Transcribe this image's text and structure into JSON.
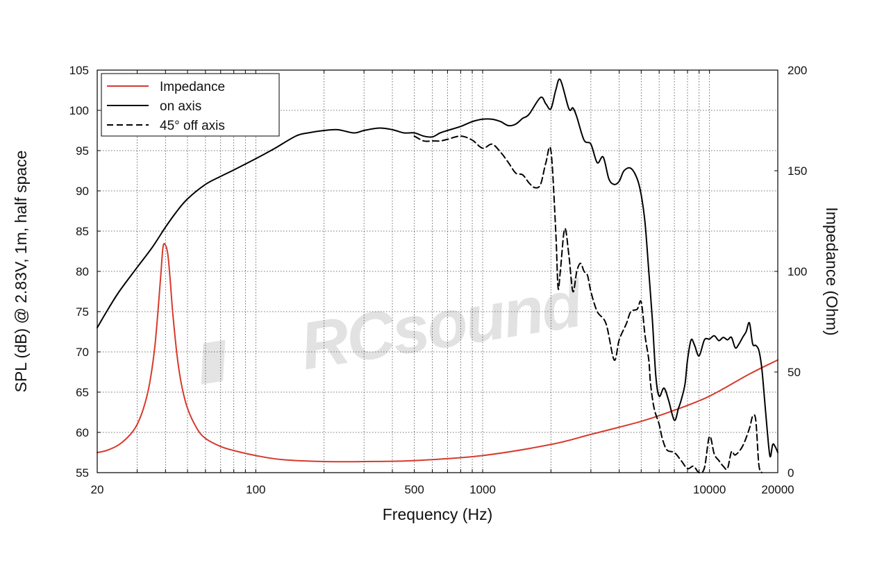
{
  "chart_data": {
    "type": "line",
    "title": "",
    "xlabel": "Frequency (Hz)",
    "ylabel": "SPL (dB) @ 2.83V, 1m, half space",
    "y2label": "Impedance (Ohm)",
    "x_scale": "log",
    "xlim": [
      20,
      20000
    ],
    "ylim": [
      55,
      105
    ],
    "y2lim": [
      0,
      200
    ],
    "x_ticks": [
      20,
      100,
      500,
      1000,
      10000,
      20000
    ],
    "x_tick_labels": [
      "20",
      "100",
      "500",
      "1000",
      "10000",
      "20000"
    ],
    "y_ticks": [
      55,
      60,
      65,
      70,
      75,
      80,
      85,
      90,
      95,
      100,
      105
    ],
    "y_tick_labels": [
      "55",
      "60",
      "65",
      "70",
      "75",
      "80",
      "85",
      "90",
      "95",
      "100",
      "105"
    ],
    "y2_ticks": [
      0,
      50,
      100,
      150,
      200
    ],
    "y2_tick_labels": [
      "0",
      "50",
      "100",
      "150",
      "200"
    ],
    "grid": true,
    "legend_position": "top-left",
    "watermark": "RCsound",
    "series": [
      {
        "name": "Impedance",
        "axis": "right",
        "color": "#d63a2c",
        "style": "solid",
        "x": [
          20,
          22,
          25,
          28,
          30,
          32,
          34,
          36,
          38,
          39,
          40,
          41,
          42,
          43,
          45,
          47,
          50,
          55,
          60,
          70,
          80,
          100,
          130,
          200,
          300,
          500,
          1000,
          2000,
          3000,
          5000,
          7000,
          10000,
          15000,
          20000
        ],
        "values": [
          10,
          11,
          14,
          19,
          24,
          32,
          44,
          64,
          96,
          112,
          113,
          108,
          95,
          80,
          58,
          44,
          32,
          22,
          17,
          13,
          11,
          8.5,
          6.5,
          5.5,
          5.5,
          6,
          8.5,
          14,
          19,
          25.5,
          31,
          38,
          49,
          56
        ]
      },
      {
        "name": "on axis",
        "axis": "left",
        "color": "#000000",
        "style": "solid",
        "x": [
          20,
          22,
          25,
          30,
          35,
          40,
          45,
          50,
          60,
          70,
          80,
          100,
          120,
          150,
          170,
          200,
          230,
          270,
          300,
          350,
          400,
          450,
          500,
          550,
          600,
          650,
          700,
          800,
          900,
          1000,
          1100,
          1200,
          1300,
          1400,
          1500,
          1600,
          1800,
          1900,
          2000,
          2100,
          2200,
          2400,
          2500,
          2600,
          2800,
          3000,
          3200,
          3400,
          3600,
          3800,
          4000,
          4200,
          4500,
          4800,
          5000,
          5200,
          5400,
          5600,
          5800,
          6000,
          6300,
          6600,
          7000,
          7300,
          7500,
          7800,
          8000,
          8300,
          8600,
          9000,
          9500,
          10000,
          10500,
          11000,
          11500,
          12000,
          12500,
          13000,
          13500,
          14000,
          14500,
          15000,
          15500,
          16000,
          16500,
          17000,
          17500,
          18000,
          18500,
          19000,
          19500,
          20000
        ],
        "values": [
          73,
          75,
          77.5,
          80.5,
          83,
          85.5,
          87.5,
          89,
          90.8,
          91.8,
          92.6,
          94,
          95.2,
          96.8,
          97.2,
          97.5,
          97.6,
          97.2,
          97.5,
          97.8,
          97.6,
          97.2,
          97.2,
          96.8,
          96.7,
          97.2,
          97.5,
          98,
          98.6,
          98.9,
          98.9,
          98.6,
          98.1,
          98.3,
          99,
          99.5,
          101.6,
          100.8,
          100.2,
          102.5,
          103.8,
          100.2,
          100.3,
          99.2,
          96.3,
          95.8,
          93.5,
          94.2,
          91.5,
          90.8,
          91.2,
          92.5,
          92.8,
          91.5,
          89.5,
          86,
          80,
          74,
          67,
          64.5,
          65.5,
          64,
          61.5,
          63,
          64,
          66,
          69,
          71.5,
          70.8,
          69.5,
          71.5,
          71.6,
          72,
          71.4,
          71.8,
          71.5,
          71.8,
          70.5,
          71,
          71.8,
          72.5,
          73.6,
          71,
          70.8,
          70.2,
          68,
          64,
          60,
          57,
          58.5,
          58.2,
          57.5
        ]
      },
      {
        "name": "45° off axis",
        "axis": "left",
        "color": "#000000",
        "style": "dashed",
        "x": [
          500,
          550,
          600,
          650,
          700,
          800,
          900,
          1000,
          1100,
          1200,
          1300,
          1400,
          1500,
          1600,
          1700,
          1800,
          1900,
          2000,
          2100,
          2150,
          2200,
          2300,
          2400,
          2500,
          2600,
          2700,
          2800,
          2900,
          3000,
          3200,
          3500,
          3800,
          4000,
          4300,
          4500,
          4800,
          5000,
          5200,
          5400,
          5500,
          5700,
          6000,
          6200,
          6500,
          7000,
          7500,
          8000,
          8500,
          9000,
          9500,
          10000,
          10500,
          11000,
          11500,
          12000,
          12500,
          13000,
          14000,
          15000,
          15500,
          16000,
          16500,
          17000
        ],
        "values": [
          96.8,
          96.2,
          96.2,
          96.2,
          96.4,
          96.8,
          96.3,
          95.3,
          95.8,
          94.8,
          93.5,
          92.2,
          92,
          91,
          90.4,
          90.8,
          93.5,
          95,
          85,
          78,
          80,
          85.3,
          82,
          77.5,
          80,
          81,
          80,
          79.5,
          77.5,
          75,
          73.5,
          69,
          71.5,
          73.5,
          75,
          75.3,
          76.2,
          72,
          69,
          66,
          63,
          61,
          59.2,
          57.8,
          57.5,
          56.5,
          55.5,
          55.8,
          55,
          55.6,
          59.5,
          57.3,
          56.5,
          55.8,
          55.5,
          57.6,
          57.2,
          58.3,
          60.5,
          62,
          61.5,
          56,
          55
        ]
      }
    ]
  },
  "legend": {
    "items": [
      "Impedance",
      "on axis",
      "45° off axis"
    ]
  }
}
